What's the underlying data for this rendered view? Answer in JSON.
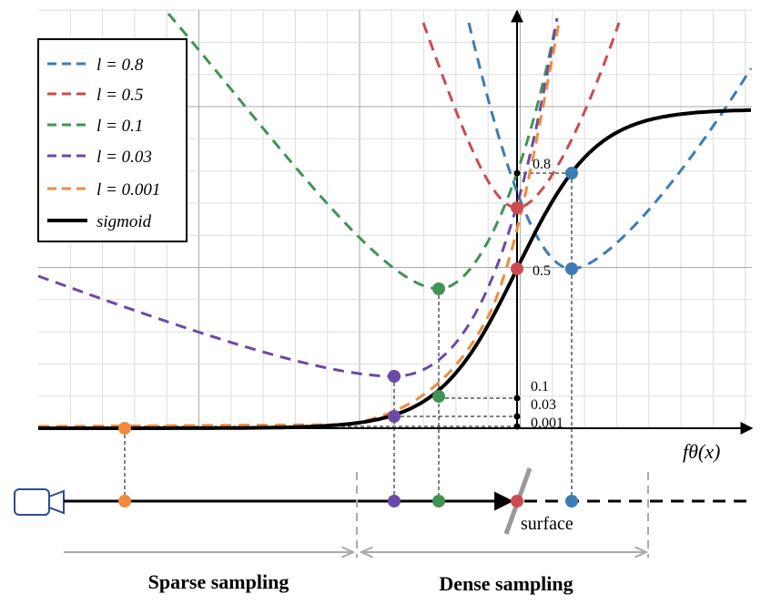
{
  "legend": [
    {
      "label": "l = 0.8",
      "color": "#3b7db4"
    },
    {
      "label": "l = 0.5",
      "color": "#cc4b50"
    },
    {
      "label": "l = 0.1",
      "color": "#3f9454"
    },
    {
      "label": "l = 0.03",
      "color": "#6a4aa6"
    },
    {
      "label": "l = 0.001",
      "color": "#f08a3c"
    },
    {
      "label": "sigmoid",
      "color": "#000000"
    }
  ],
  "value_labels": [
    "0.8",
    "0.5",
    "0.1",
    "0.03",
    "0.001"
  ],
  "axis_label": "fθ(x)",
  "surface_label": "surface",
  "sparse_label": "Sparse sampling",
  "dense_label": "Dense sampling"
}
